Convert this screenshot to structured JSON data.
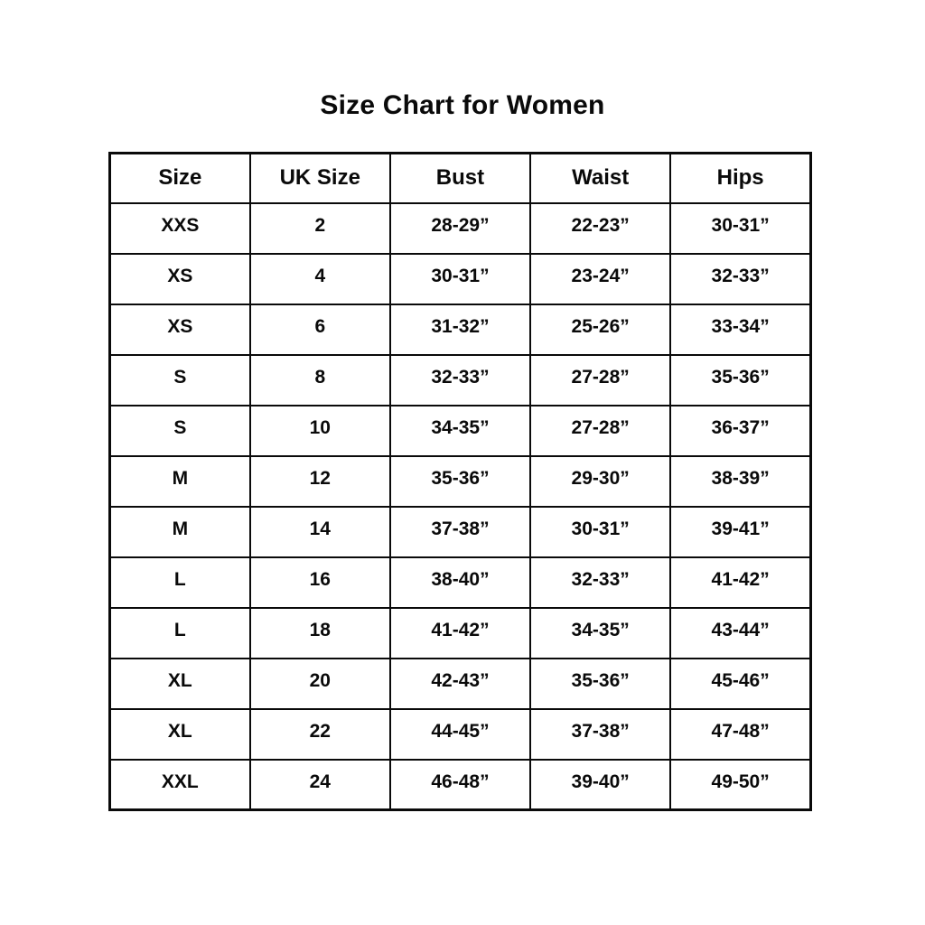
{
  "title": "Size Chart for Women",
  "table": {
    "headers": [
      "Size",
      "UK Size",
      "Bust",
      "Waist",
      "Hips"
    ],
    "rows": [
      [
        "XXS",
        "2",
        "28-29”",
        "22-23”",
        "30-31”"
      ],
      [
        "XS",
        "4",
        "30-31”",
        "23-24”",
        "32-33”"
      ],
      [
        "XS",
        "6",
        "31-32”",
        "25-26”",
        "33-34”"
      ],
      [
        "S",
        "8",
        "32-33”",
        "27-28”",
        "35-36”"
      ],
      [
        "S",
        "10",
        "34-35”",
        "27-28”",
        "36-37”"
      ],
      [
        "M",
        "12",
        "35-36”",
        "29-30”",
        "38-39”"
      ],
      [
        "M",
        "14",
        "37-38”",
        "30-31”",
        "39-41”"
      ],
      [
        "L",
        "16",
        "38-40”",
        "32-33”",
        "41-42”"
      ],
      [
        "L",
        "18",
        "41-42”",
        "34-35”",
        "43-44”"
      ],
      [
        "XL",
        "20",
        "42-43”",
        "35-36”",
        "45-46”"
      ],
      [
        "XL",
        "22",
        "44-45”",
        "37-38”",
        "47-48”"
      ],
      [
        "XXL",
        "24",
        "46-48”",
        "39-40”",
        "49-50”"
      ]
    ]
  },
  "chart_data": {
    "type": "table",
    "title": "Size Chart for Women",
    "columns": [
      "Size",
      "UK Size",
      "Bust",
      "Waist",
      "Hips"
    ],
    "rows": [
      [
        "XXS",
        "2",
        "28-29”",
        "22-23”",
        "30-31”"
      ],
      [
        "XS",
        "4",
        "30-31”",
        "23-24”",
        "32-33”"
      ],
      [
        "XS",
        "6",
        "31-32”",
        "25-26”",
        "33-34”"
      ],
      [
        "S",
        "8",
        "32-33”",
        "27-28”",
        "35-36”"
      ],
      [
        "S",
        "10",
        "34-35”",
        "27-28”",
        "36-37”"
      ],
      [
        "M",
        "12",
        "35-36”",
        "29-30”",
        "38-39”"
      ],
      [
        "M",
        "14",
        "37-38”",
        "30-31”",
        "39-41”"
      ],
      [
        "L",
        "16",
        "38-40”",
        "32-33”",
        "41-42”"
      ],
      [
        "L",
        "18",
        "41-42”",
        "34-35”",
        "43-44”"
      ],
      [
        "XL",
        "20",
        "42-43”",
        "35-36”",
        "45-46”"
      ],
      [
        "XL",
        "22",
        "44-45”",
        "37-38”",
        "47-48”"
      ],
      [
        "XXL",
        "24",
        "46-48”",
        "39-40”",
        "49-50”"
      ]
    ],
    "colors": {
      "text": "#0a0a0a",
      "background": "#ffffff",
      "border": "#0a0a0a"
    }
  }
}
